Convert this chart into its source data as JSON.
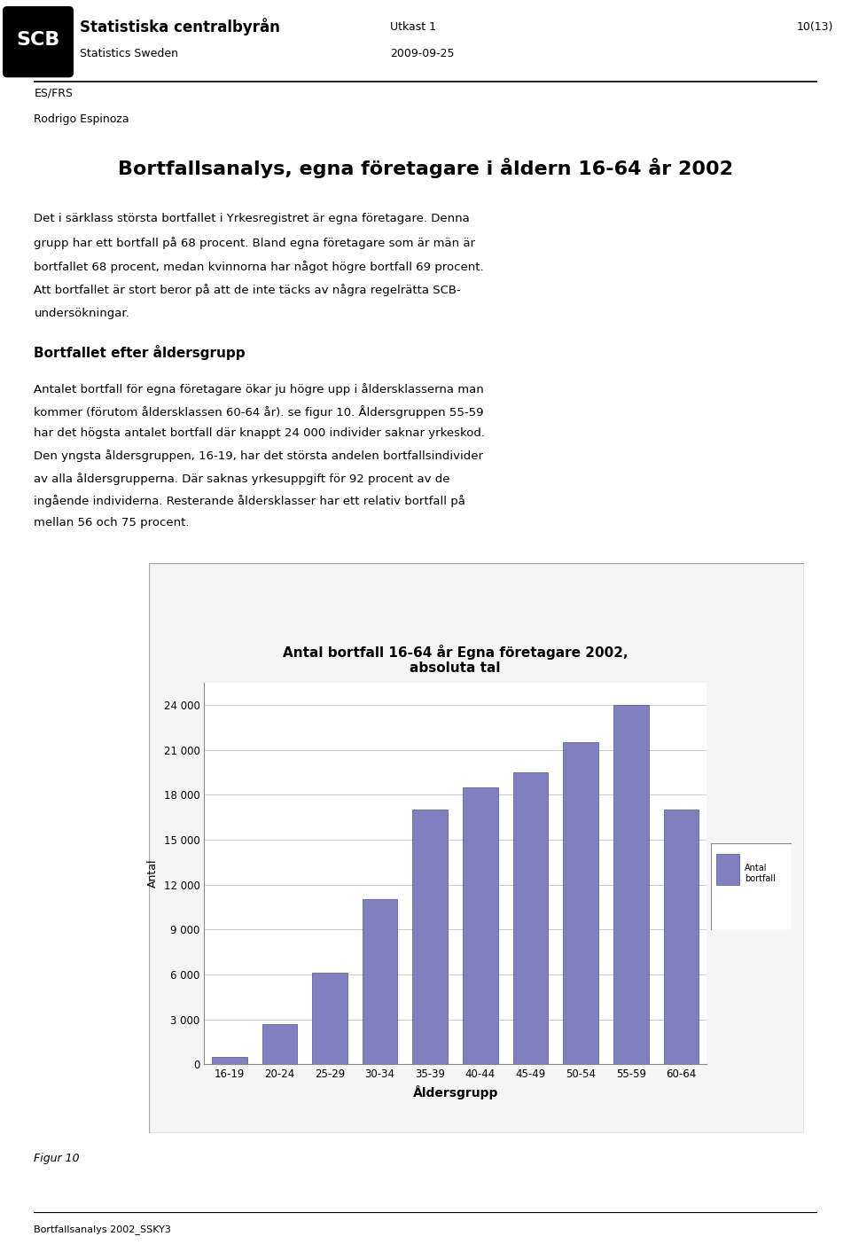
{
  "title_line1": "Antal bortfall 16-64 år Egna företagare 2002,",
  "title_line2": "absoluta tal",
  "categories": [
    "16-19",
    "20-24",
    "25-29",
    "30-34",
    "35-39",
    "40-44",
    "45-49",
    "50-54",
    "55-59",
    "60-64"
  ],
  "values": [
    500,
    2700,
    6100,
    11000,
    17000,
    18500,
    19500,
    21500,
    24000,
    17000
  ],
  "bar_color": "#8080c0",
  "bar_edge_color": "#5050a0",
  "xlabel": "Åldersgrupp",
  "ylabel": "Antal",
  "yticks": [
    0,
    3000,
    6000,
    9000,
    12000,
    15000,
    18000,
    21000,
    24000
  ],
  "ylim": [
    0,
    25500
  ],
  "legend_label": "Antal\nbortfall",
  "page_title": "Bortfallsanalys, egna företagare i åldern 16-64 år 2002",
  "header_left1": "ES/FRS",
  "header_left2": "Rodrigo Espinoza",
  "header_center1": "Utkast 1",
  "header_center2": "2009-09-25",
  "header_right": "10(13)",
  "org_name_bold": "Statistiska centralbyrån",
  "org_name_sub": "Statistics Sweden",
  "body_text": [
    "Det i särklass största bortfallet i Yrkesregistret är egna företagare. Denna grupp har ett bortfall på 68 procent. Bland egna företagare som är män är",
    "bortfallet 68 procent, medan kvinnorna har något högre bortfall 69 procent. Att bortfallet är stort beror på att de inte täcks av några regelrätta SCB-",
    "undersökningar."
  ],
  "section_title": "Bortfallet efter åldersgrupp",
  "section_text": [
    "Antalet bortfall för egna företagare ökar ju högre upp i åldersklasserna man kommer (förutom åldersklassen 60-64 år). se figur 10. Åldersgruppen 55-59",
    "har det högsta antalet bortfall där knappt 24 000 individer saknar yrkeskod. Den yngsta åldersgruppen, 16-19, har det största andelen bortfallsindivider",
    "av alla åldersgrupperna. Där saknas yrkesuppgift för 92 procent av de ingående individerna. Resterande åldersklasser har ett relativ bortfall på",
    "mellan 56 och 75 procent."
  ],
  "footer_text": "Bortfallsanalys 2002_SSKY3",
  "figur_label": "Figur 10",
  "background_color": "#ffffff",
  "chart_bg_color": "#ffffff",
  "grid_color": "#cccccc"
}
